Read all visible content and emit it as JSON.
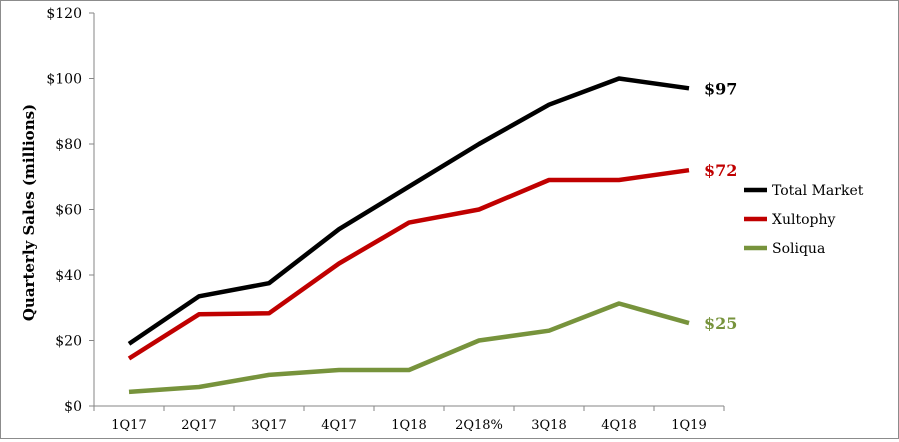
{
  "chart_data": {
    "type": "line",
    "title": "",
    "xlabel": "",
    "ylabel": "Quarterly Sales (millions)",
    "categories": [
      "1Q17",
      "2Q17",
      "3Q17",
      "4Q17",
      "1Q18",
      "2Q18%",
      "3Q18",
      "4Q18",
      "1Q19"
    ],
    "ylim": [
      0,
      120
    ],
    "y_ticks": [
      0,
      20,
      40,
      60,
      80,
      100,
      120
    ],
    "y_tick_labels": [
      "$0",
      "$20",
      "$40",
      "$60",
      "$80",
      "$100",
      "$120"
    ],
    "grid": false,
    "legend_position": "right",
    "series": [
      {
        "name": "Total Market",
        "color": "#000000",
        "values": [
          19,
          33.5,
          37.5,
          54,
          67,
          80,
          92,
          100,
          97
        ],
        "end_label": "$97"
      },
      {
        "name": "Xultophy",
        "color": "#c00000",
        "values": [
          14.5,
          28,
          28.3,
          43.5,
          56,
          60,
          69,
          69,
          72
        ],
        "end_label": "$72"
      },
      {
        "name": "Soliqua",
        "color": "#77933c",
        "values": [
          4.3,
          5.8,
          9.5,
          11,
          11,
          20,
          23,
          31.3,
          25.3
        ],
        "end_label": "$25"
      }
    ]
  }
}
